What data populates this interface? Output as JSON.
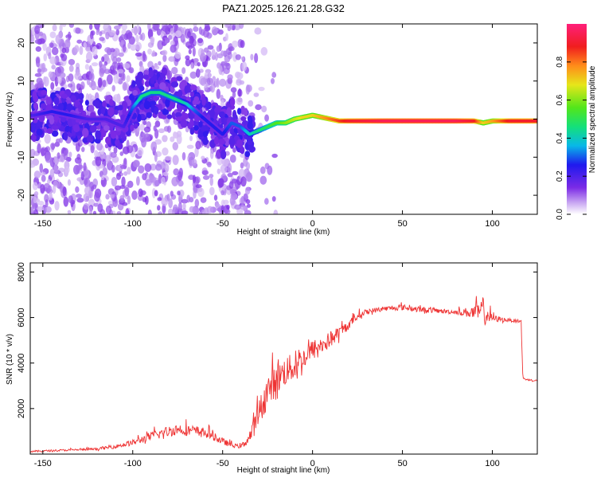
{
  "figure": {
    "title": "PAZ1.2025.126.21.28.G32"
  },
  "chart_data": [
    {
      "type": "heatmap",
      "xlabel": "Height of straight line (km)",
      "ylabel": "Frequency (Hz)",
      "xlim": [
        -157,
        125
      ],
      "ylim": [
        -25,
        25
      ],
      "xticks": [
        -150,
        -100,
        -50,
        0,
        50,
        100
      ],
      "yticks": [
        -20,
        -10,
        0,
        10,
        20
      ],
      "colorbar": {
        "label": "Normalized spectral amplitude",
        "range": [
          0,
          1
        ],
        "ticks": [
          0.0,
          0.2,
          0.4,
          0.6,
          0.8
        ],
        "colormap": "rainbow (white-violet-blue-cyan-green-yellow-red-pink)"
      },
      "ridge": {
        "x": [
          -155,
          -145,
          -135,
          -125,
          -115,
          -105,
          -100,
          -95,
          -90,
          -85,
          -80,
          -75,
          -70,
          -65,
          -60,
          -55,
          -50,
          -45,
          -40,
          -35,
          -30,
          -25,
          -20,
          -15,
          -10,
          -5,
          0,
          5,
          10,
          15,
          20,
          40,
          60,
          80,
          90,
          95,
          100,
          110,
          125
        ],
        "frequency": [
          1,
          2,
          1,
          0,
          0,
          -2,
          3,
          6,
          7,
          7,
          6,
          5,
          4,
          2,
          0,
          -2,
          -4,
          -1,
          -2,
          -4,
          -3,
          -2,
          -1,
          -1,
          0,
          0.5,
          1,
          0.5,
          0,
          -0.5,
          -0.5,
          -0.5,
          -0.5,
          -0.5,
          -0.5,
          -1,
          -0.5,
          -0.5,
          -0.5
        ],
        "amplitude": [
          0.2,
          0.25,
          0.25,
          0.2,
          0.2,
          0.2,
          0.3,
          0.45,
          0.45,
          0.45,
          0.45,
          0.45,
          0.4,
          0.3,
          0.25,
          0.25,
          0.25,
          0.3,
          0.3,
          0.4,
          0.45,
          0.5,
          0.55,
          0.6,
          0.65,
          0.7,
          0.7,
          0.75,
          0.8,
          0.85,
          0.9,
          0.95,
          0.95,
          0.95,
          0.9,
          0.7,
          0.75,
          0.9,
          0.9
        ]
      },
      "noise_extent": {
        "x_max": -40,
        "frequency_range": [
          -25,
          25
        ]
      }
    },
    {
      "type": "line",
      "xlabel": "Height of straight line (km)",
      "ylabel": "SNR (10 * v/v)",
      "xlim": [
        -157,
        125
      ],
      "ylim": [
        0,
        8400
      ],
      "xticks": [
        -150,
        -100,
        -50,
        0,
        50,
        100
      ],
      "yticks": [
        2000,
        4000,
        6000,
        8000
      ],
      "color": "#ee3333",
      "series": [
        {
          "x": [
            -157,
            -140,
            -120,
            -110,
            -100,
            -90,
            -80,
            -75,
            -70,
            -65,
            -60,
            -55,
            -50,
            -45,
            -40,
            -35,
            -30,
            -25,
            -20,
            -15,
            -10,
            -5,
            0,
            5,
            10,
            15,
            20,
            25,
            30,
            40,
            50,
            60,
            70,
            80,
            90,
            95,
            100,
            110,
            116,
            117,
            120,
            125
          ],
          "values": [
            100,
            150,
            200,
            300,
            450,
            700,
            900,
            1000,
            950,
            900,
            850,
            700,
            500,
            350,
            300,
            600,
            1500,
            2500,
            3000,
            3400,
            3600,
            4000,
            4400,
            4600,
            4900,
            5200,
            5600,
            6000,
            6200,
            6350,
            6400,
            6300,
            6250,
            6200,
            6100,
            6000,
            5900,
            5850,
            5800,
            3300,
            3250,
            3200
          ],
          "spread": [
            80,
            80,
            100,
            150,
            250,
            400,
            500,
            500,
            500,
            500,
            450,
            350,
            300,
            200,
            150,
            500,
            1200,
            1400,
            1400,
            1300,
            1200,
            1000,
            900,
            800,
            700,
            600,
            400,
            300,
            250,
            200,
            250,
            250,
            200,
            200,
            600,
            1200,
            300,
            150,
            150,
            80,
            80,
            80
          ]
        }
      ]
    }
  ]
}
